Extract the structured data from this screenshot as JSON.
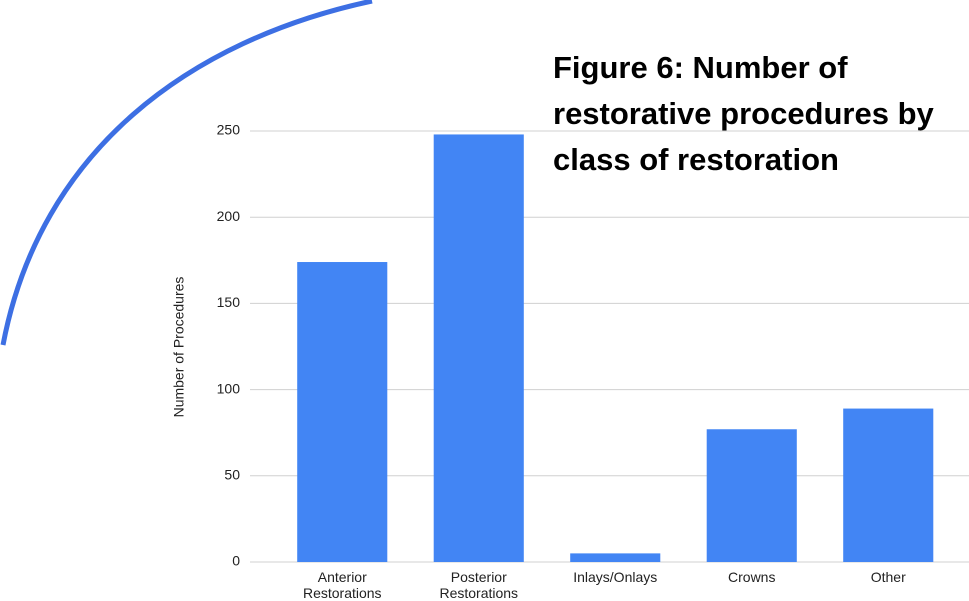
{
  "chart_data": {
    "type": "bar",
    "title": "Figure 6: Number of restorative procedures by class of restoration",
    "y_label": "Number of Procedures",
    "categories": [
      "Anterior Restorations",
      "Posterior Restorations",
      "Inlays/Onlays",
      "Crowns",
      "Other"
    ],
    "values": [
      174,
      248,
      5,
      77,
      89
    ],
    "color": "#4285f4",
    "ylim": [
      0,
      250
    ],
    "yticks": [
      0,
      50,
      100,
      150,
      200,
      250
    ],
    "grid": true
  }
}
